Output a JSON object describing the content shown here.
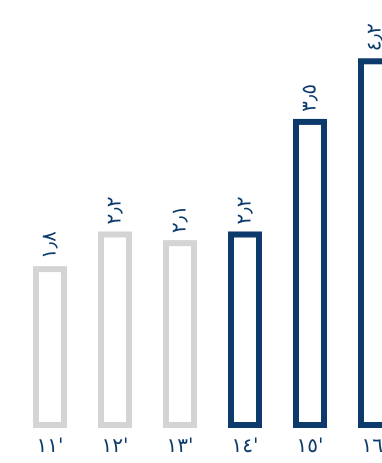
{
  "chart_data": {
    "type": "bar",
    "categories": [
      "١١'",
      "١٢'",
      "١٣'",
      "١٤'",
      "١٥'",
      "١٦'"
    ],
    "values": [
      1.8,
      2.2,
      2.1,
      2.2,
      3.5,
      4.2
    ],
    "value_labels": [
      "١٫٨",
      "٢٫٢",
      "٢٫١",
      "٢٫٢",
      "٣٫٥",
      "٤٫٢"
    ],
    "highlighted": [
      false,
      false,
      false,
      true,
      true,
      true
    ],
    "ylim": [
      0,
      4.7
    ],
    "grid": false,
    "legend": "none",
    "colors": {
      "default": "#d4d4d4",
      "highlight": "#0b3a6b",
      "text": "#0b3a6b"
    }
  }
}
